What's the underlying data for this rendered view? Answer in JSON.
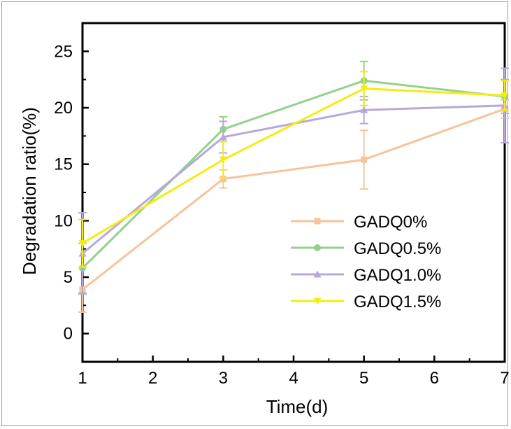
{
  "chart_data": {
    "type": "line",
    "title": "",
    "xlabel": "Time(d)",
    "ylabel": "Degradation ratio(%)",
    "xlim": [
      1,
      7
    ],
    "ylim": [
      -2.5,
      27.5
    ],
    "x_ticks": [
      "1",
      "2",
      "3",
      "4",
      "5",
      "6",
      "7"
    ],
    "y_ticks": [
      "0",
      "5",
      "10",
      "15",
      "20",
      "25"
    ],
    "grid": false,
    "legend_position": "center-right",
    "x": [
      1,
      3,
      5,
      7
    ],
    "series": [
      {
        "name": "GADQ0%",
        "color": "#f7c39a",
        "marker": "square",
        "values": [
          3.9,
          13.7,
          15.4,
          19.9
        ],
        "errors": [
          2.0,
          0.8,
          2.6,
          0.8
        ]
      },
      {
        "name": "GADQ0.5%",
        "color": "#92d28a",
        "marker": "circle",
        "values": [
          5.8,
          18.1,
          22.4,
          21.0
        ],
        "errors": [
          2.2,
          1.1,
          1.7,
          1.5
        ]
      },
      {
        "name": "GADQ1.0%",
        "color": "#b8a8d8",
        "marker": "triangle-up",
        "values": [
          7.1,
          17.4,
          19.8,
          20.2
        ],
        "errors": [
          3.6,
          1.4,
          1.2,
          3.3
        ]
      },
      {
        "name": "GADQ1.5%",
        "color": "#f5ec12",
        "marker": "triangle-down",
        "values": [
          8.0,
          15.4,
          21.7,
          21.1
        ],
        "errors": [
          2.1,
          1.6,
          1.5,
          1.3
        ]
      }
    ]
  }
}
